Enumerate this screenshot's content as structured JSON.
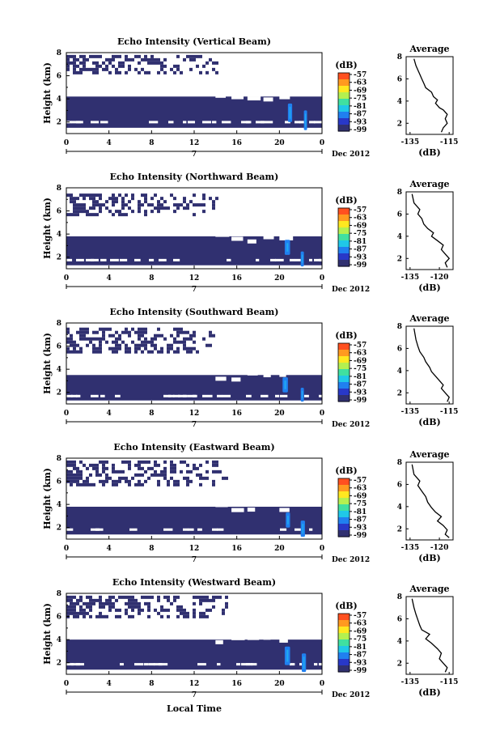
{
  "figure": {
    "xlabel": "Local Time",
    "date_label": "Dec 2012",
    "day_label": "7",
    "colorbar_label": "(dB)",
    "avg_title": "Average",
    "avg_xlabel": "(dB)"
  },
  "colorbar": {
    "ticks": [
      "-57",
      "-63",
      "-69",
      "-75",
      "-81",
      "-87",
      "-93",
      "-99"
    ],
    "colors": [
      "#ff5020",
      "#ff9a20",
      "#ffe820",
      "#b4f050",
      "#40e0a0",
      "#20c8e8",
      "#2080f0",
      "#2838c8",
      "#303070"
    ]
  },
  "chart_data": [
    {
      "type": "heatmap",
      "title": "Echo Intensity (Vertical Beam)",
      "xlabel": "Local Time",
      "ylabel": "Height (km)",
      "x_ticks": [
        "0",
        "4",
        "8",
        "12",
        "16",
        "20",
        "0"
      ],
      "y_ticks": [
        "2",
        "4",
        "6",
        "8"
      ],
      "xlim": [
        0,
        24
      ],
      "ylim": [
        1,
        8
      ],
      "colorbar_range_db": [
        -99,
        -57
      ],
      "layers": [
        {
          "x0": 0,
          "x1": 24,
          "y0": 1.5,
          "y1": 4.2,
          "level_db": -99
        },
        {
          "x0": 0,
          "x1": 14,
          "y0": 6.2,
          "y1": 7.8,
          "level_db": -99,
          "texture": "speckle"
        },
        {
          "x0": 20.8,
          "x1": 21.2,
          "y0": 2.0,
          "y1": 3.6,
          "level_db": -87
        },
        {
          "x0": 22.3,
          "x1": 22.6,
          "y0": 1.3,
          "y1": 3.0,
          "level_db": -87
        }
      ]
    },
    {
      "type": "heatmap",
      "title": "Echo Intensity (Northward Beam)",
      "xlabel": "Local Time",
      "ylabel": "Height (km)",
      "x_ticks": [
        "0",
        "4",
        "8",
        "12",
        "16",
        "20",
        "0"
      ],
      "y_ticks": [
        "2",
        "4",
        "6",
        "8"
      ],
      "xlim": [
        0,
        24
      ],
      "ylim": [
        1,
        8
      ],
      "colorbar_range_db": [
        -99,
        -57
      ],
      "layers": [
        {
          "x0": 0,
          "x1": 24,
          "y0": 1.3,
          "y1": 3.8,
          "level_db": -99
        },
        {
          "x0": 0,
          "x1": 14,
          "y0": 5.6,
          "y1": 7.5,
          "level_db": -99,
          "texture": "speckle"
        },
        {
          "x0": 20.5,
          "x1": 21.0,
          "y0": 2.2,
          "y1": 3.5,
          "level_db": -87
        },
        {
          "x0": 22.0,
          "x1": 22.3,
          "y0": 1.2,
          "y1": 2.5,
          "level_db": -87
        }
      ]
    },
    {
      "type": "heatmap",
      "title": "Echo Intensity (Southward Beam)",
      "xlabel": "Local Time",
      "ylabel": "Height (km)",
      "x_ticks": [
        "0",
        "4",
        "8",
        "12",
        "16",
        "20",
        "0"
      ],
      "y_ticks": [
        "2",
        "4",
        "6",
        "8"
      ],
      "xlim": [
        0,
        24
      ],
      "ylim": [
        1,
        8
      ],
      "colorbar_range_db": [
        -99,
        -57
      ],
      "layers": [
        {
          "x0": 0,
          "x1": 24,
          "y0": 1.3,
          "y1": 3.5,
          "level_db": -99
        },
        {
          "x0": 0,
          "x1": 14,
          "y0": 5.6,
          "y1": 7.6,
          "level_db": -99,
          "texture": "speckle"
        },
        {
          "x0": 20.3,
          "x1": 20.8,
          "y0": 2.0,
          "y1": 3.3,
          "level_db": -87
        },
        {
          "x0": 22.0,
          "x1": 22.3,
          "y0": 1.2,
          "y1": 2.4,
          "level_db": -87
        }
      ]
    },
    {
      "type": "heatmap",
      "title": "Echo Intensity (Eastward Beam)",
      "xlabel": "Local Time",
      "ylabel": "Height (km)",
      "x_ticks": [
        "0",
        "4",
        "8",
        "12",
        "16",
        "20",
        "0"
      ],
      "y_ticks": [
        "2",
        "4",
        "6",
        "8"
      ],
      "xlim": [
        0,
        24
      ],
      "ylim": [
        1,
        8
      ],
      "colorbar_range_db": [
        -99,
        -57
      ],
      "layers": [
        {
          "x0": 0,
          "x1": 24,
          "y0": 1.4,
          "y1": 3.8,
          "level_db": -99
        },
        {
          "x0": 0,
          "x1": 15,
          "y0": 5.6,
          "y1": 7.8,
          "level_db": -99,
          "texture": "speckle"
        },
        {
          "x0": 20.6,
          "x1": 21.0,
          "y0": 2.0,
          "y1": 3.3,
          "level_db": -87
        },
        {
          "x0": 22.0,
          "x1": 22.4,
          "y0": 1.2,
          "y1": 2.6,
          "level_db": -87
        }
      ]
    },
    {
      "type": "heatmap",
      "title": "Echo Intensity (Westward Beam)",
      "xlabel": "Local Time",
      "ylabel": "Height (km)",
      "x_ticks": [
        "0",
        "4",
        "8",
        "12",
        "16",
        "20",
        "0"
      ],
      "y_ticks": [
        "2",
        "4",
        "6",
        "8"
      ],
      "xlim": [
        0,
        24
      ],
      "ylim": [
        1,
        8
      ],
      "colorbar_range_db": [
        -99,
        -57
      ],
      "layers": [
        {
          "x0": 0,
          "x1": 24,
          "y0": 1.4,
          "y1": 4.0,
          "level_db": -99
        },
        {
          "x0": 0,
          "x1": 15,
          "y0": 6.0,
          "y1": 7.8,
          "level_db": -99,
          "texture": "speckle"
        },
        {
          "x0": 20.5,
          "x1": 21.0,
          "y0": 1.8,
          "y1": 3.4,
          "level_db": -87
        },
        {
          "x0": 22.1,
          "x1": 22.5,
          "y0": 1.2,
          "y1": 2.8,
          "level_db": -87
        }
      ]
    },
    {
      "type": "line",
      "title": "Average",
      "xlabel": "(dB)",
      "x_ticks": [
        "-135",
        "-115"
      ],
      "xlim": [
        -137,
        -113
      ],
      "y_ticks": [
        "2",
        "4",
        "6",
        "8"
      ],
      "ylim": [
        1,
        8
      ],
      "x": [
        -119,
        -118,
        -116,
        -117,
        -116,
        -118,
        -120,
        -122,
        -121,
        -123,
        -124,
        -127,
        -128,
        -129,
        -130,
        -131,
        -132,
        -133
      ],
      "y": [
        1.2,
        1.6,
        2.0,
        2.4,
        2.8,
        3.2,
        3.4,
        3.8,
        4.1,
        4.4,
        4.8,
        5.2,
        5.6,
        6.0,
        6.4,
        6.8,
        7.2,
        7.8
      ]
    },
    {
      "type": "line",
      "title": "Average",
      "xlabel": "(dB)",
      "x_ticks": [
        "-135",
        "-120"
      ],
      "xlim": [
        -137,
        -113
      ],
      "y_ticks": [
        "2",
        "4",
        "6",
        "8"
      ],
      "ylim": [
        1,
        8
      ],
      "x": [
        -116,
        -117,
        -115,
        -117,
        -119,
        -118,
        -121,
        -124,
        -123,
        -126,
        -128,
        -129,
        -131,
        -130,
        -133,
        -134
      ],
      "y": [
        1.2,
        1.6,
        2.0,
        2.4,
        2.8,
        3.2,
        3.6,
        4.0,
        4.3,
        4.7,
        5.1,
        5.6,
        6.0,
        6.4,
        7.0,
        7.8
      ]
    },
    {
      "type": "line",
      "title": "Average",
      "xlabel": "(dB)",
      "x_ticks": [
        "-135",
        "-115"
      ],
      "xlim": [
        -137,
        -113
      ],
      "y_ticks": [
        "2",
        "4",
        "6",
        "8"
      ],
      "ylim": [
        1,
        8
      ],
      "x": [
        -116,
        -115,
        -117,
        -119,
        -118,
        -120,
        -122,
        -124,
        -125,
        -127,
        -128,
        -130,
        -131,
        -132,
        -133
      ],
      "y": [
        1.2,
        1.6,
        2.0,
        2.4,
        2.7,
        3.1,
        3.5,
        3.9,
        4.3,
        4.8,
        5.2,
        5.7,
        6.2,
        6.8,
        7.8
      ]
    },
    {
      "type": "line",
      "title": "Average",
      "xlabel": "(dB)",
      "x_ticks": [
        "-135",
        "-120"
      ],
      "xlim": [
        -137,
        -113
      ],
      "y_ticks": [
        "2",
        "4",
        "6",
        "8"
      ],
      "ylim": [
        1,
        8
      ],
      "x": [
        -115,
        -117,
        -116,
        -118,
        -121,
        -119,
        -122,
        -124,
        -126,
        -127,
        -129,
        -131,
        -130,
        -133,
        -134
      ],
      "y": [
        1.2,
        1.5,
        1.9,
        2.3,
        2.7,
        3.1,
        3.5,
        3.9,
        4.4,
        4.9,
        5.4,
        5.9,
        6.3,
        6.9,
        7.8
      ]
    },
    {
      "type": "line",
      "title": "Average",
      "xlabel": "(dB)",
      "x_ticks": [
        "-135",
        "-115"
      ],
      "xlim": [
        -137,
        -113
      ],
      "y_ticks": [
        "2",
        "4",
        "6",
        "8"
      ],
      "ylim": [
        1,
        8
      ],
      "x": [
        -117,
        -116,
        -118,
        -120,
        -119,
        -121,
        -124,
        -127,
        -125,
        -129,
        -130,
        -131,
        -132,
        -133,
        -134
      ],
      "y": [
        1.2,
        1.6,
        2.0,
        2.4,
        2.9,
        3.3,
        3.8,
        4.2,
        4.6,
        5.0,
        5.4,
        5.9,
        6.4,
        7.0,
        7.8
      ]
    }
  ]
}
